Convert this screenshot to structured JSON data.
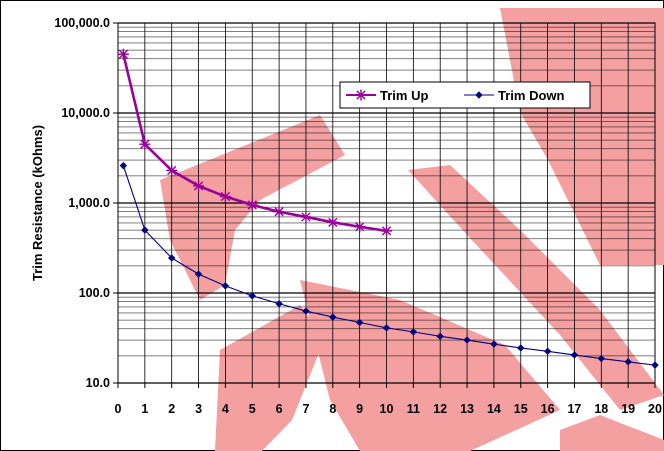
{
  "chart_data": {
    "type": "line",
    "title": "",
    "xlabel": "",
    "ylabel": "Trim Resistance (kOhms)",
    "yscale": "log",
    "xlim": [
      0,
      20
    ],
    "ylim": [
      10,
      100000
    ],
    "grid": true,
    "legend_position": "top-right",
    "x_ticks": [
      "0",
      "1",
      "2",
      "3",
      "4",
      "5",
      "6",
      "7",
      "8",
      "9",
      "10",
      "11",
      "12",
      "13",
      "14",
      "15",
      "16",
      "17",
      "18",
      "19",
      "20"
    ],
    "y_ticks": [
      "10.0",
      "100.0",
      "1,000.0",
      "10,000.0",
      "100,000.0"
    ],
    "y_tick_values": [
      10,
      100,
      1000,
      10000,
      100000
    ],
    "series": [
      {
        "name": "Trim Up",
        "color": "#990099",
        "marker": "star",
        "x": [
          0.2,
          1,
          2,
          3,
          4,
          5,
          6,
          7,
          8,
          9,
          10
        ],
        "y": [
          45000,
          4500,
          2300,
          1550,
          1180,
          950,
          800,
          700,
          610,
          545,
          490
        ]
      },
      {
        "name": "Trim Down",
        "color": "#000080",
        "marker": "diamond",
        "x": [
          0.2,
          1,
          2,
          3,
          4,
          5,
          6,
          7,
          8,
          9,
          10,
          11,
          12,
          13,
          14,
          15,
          16,
          17,
          18,
          19,
          20
        ],
        "y": [
          2600,
          500,
          245,
          162,
          120,
          93,
          76,
          63,
          54,
          47,
          41,
          37,
          33,
          30,
          27,
          24.5,
          22.5,
          20.5,
          18.7,
          17.2,
          15.8
        ]
      }
    ]
  },
  "watermark": {
    "color": "#F4A0A0"
  }
}
